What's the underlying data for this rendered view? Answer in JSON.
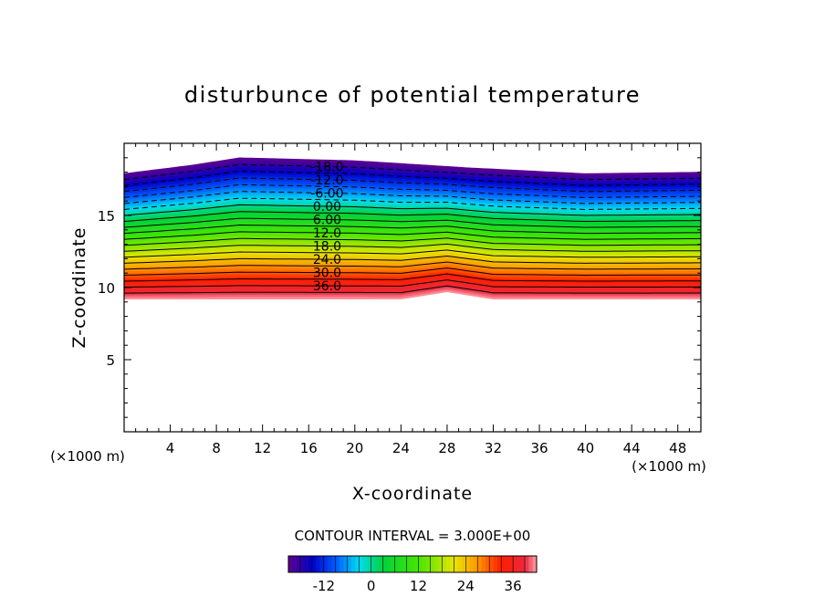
{
  "chart_data": {
    "type": "contour",
    "title": "disturbunce of potential temperature",
    "xlabel": "X-coordinate",
    "ylabel": "Z-coordinate",
    "x_unit_note": "(×1000 m)",
    "y_unit_note": "(×1000 m)",
    "xlim": [
      0,
      50
    ],
    "ylim": [
      0,
      20
    ],
    "x_ticks": [
      4,
      8,
      12,
      16,
      20,
      24,
      28,
      32,
      36,
      40,
      44,
      48
    ],
    "y_ticks": [
      5,
      10,
      15
    ],
    "contour_interval_label": "CONTOUR INTERVAL = 3.000E+00",
    "contour_interval": 3,
    "contour_levels": [
      -18,
      -15,
      -12,
      -9,
      -6,
      -3,
      0,
      3,
      6,
      9,
      12,
      15,
      18,
      21,
      24,
      27,
      30,
      33,
      36,
      39
    ],
    "contour_labels": [
      "-18.0",
      "-12.0",
      "-6.00",
      "0.00",
      "6.00",
      "12.0",
      "18.0",
      "24.0",
      "30.0",
      "36.0"
    ],
    "colorbar_ticks": [
      "-12",
      "0",
      "12",
      "24",
      "36"
    ],
    "colorbar_range": [
      -21,
      42
    ],
    "field_description_bounds": {
      "top_boundary_z": [
        [
          0,
          17.9
        ],
        [
          6,
          18.5
        ],
        [
          10,
          19.0
        ],
        [
          20,
          18.8
        ],
        [
          30,
          18.3
        ],
        [
          40,
          17.9
        ],
        [
          50,
          18.0
        ]
      ],
      "bottom_boundary_z": [
        [
          0,
          9.2
        ],
        [
          24,
          9.2
        ],
        [
          28,
          9.7
        ],
        [
          32,
          9.2
        ],
        [
          50,
          9.2
        ]
      ]
    }
  }
}
